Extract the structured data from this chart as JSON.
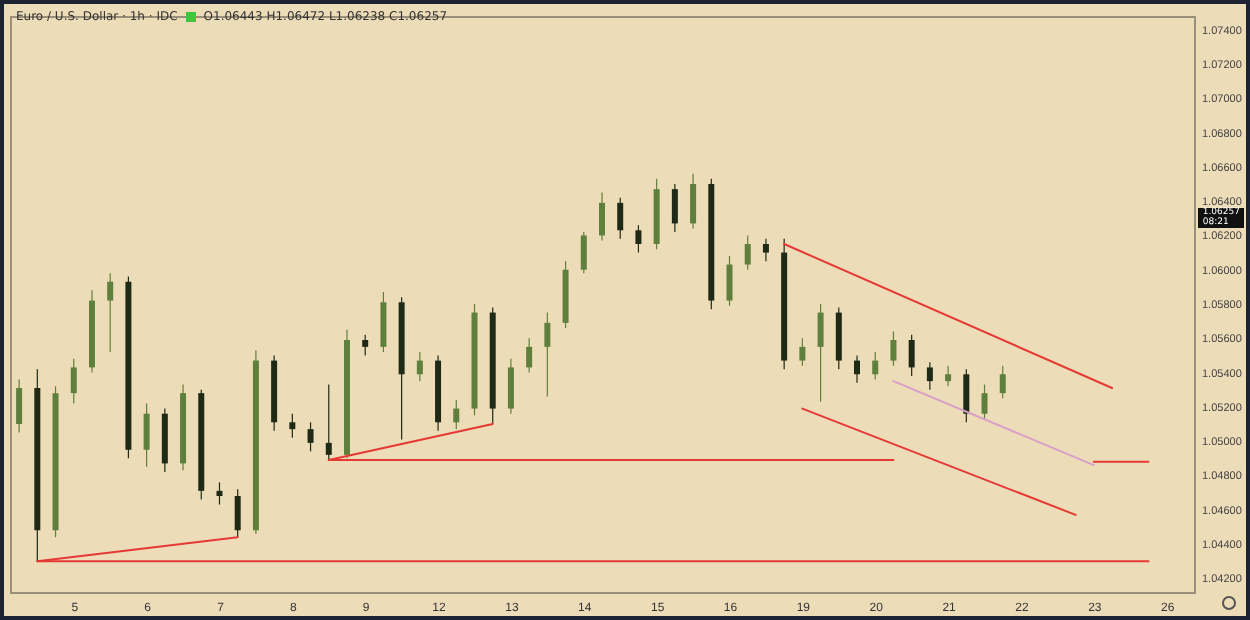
{
  "chart_data": {
    "type": "candlestick",
    "title": "Euro / U.S. Dollar · 1h · IDC",
    "annotations": [
      "O1.06443 H1.06472 L1.06238 C1.06257",
      "1.06257\n08:21"
    ],
    "categories": [
      null,
      null,
      null,
      "5",
      null,
      null,
      null,
      "6",
      null,
      null,
      null,
      "7",
      null,
      null,
      null,
      "8",
      null,
      null,
      null,
      "9",
      null,
      null,
      null,
      "12",
      null,
      null,
      null,
      "13",
      null,
      null,
      null,
      "14",
      null,
      null,
      null,
      "15",
      null,
      null,
      null,
      "16",
      null,
      null,
      null,
      "19",
      null,
      null,
      null,
      "20",
      null,
      null,
      null,
      "21",
      null,
      null,
      null,
      "22",
      null,
      null,
      null,
      "23",
      null,
      null,
      null,
      "26",
      null
    ],
    "ohlc": [
      [
        1.051,
        1.0536,
        1.0505,
        1.0531
      ],
      [
        1.0531,
        1.0542,
        1.043,
        1.0448
      ],
      [
        1.0448,
        1.0532,
        1.0444,
        1.0528
      ],
      [
        1.0528,
        1.0548,
        1.0522,
        1.0543
      ],
      [
        1.0543,
        1.0588,
        1.054,
        1.0582
      ],
      [
        1.0582,
        1.0598,
        1.0552,
        1.0593
      ],
      [
        1.0593,
        1.0596,
        1.049,
        1.0495
      ],
      [
        1.0495,
        1.0522,
        1.0485,
        1.0516
      ],
      [
        1.0516,
        1.0519,
        1.0482,
        1.0487
      ],
      [
        1.0487,
        1.0533,
        1.0483,
        1.0528
      ],
      [
        1.0528,
        1.053,
        1.0466,
        1.0471
      ],
      [
        1.0471,
        1.0476,
        1.0463,
        1.0468
      ],
      [
        1.0468,
        1.0472,
        1.0444,
        1.0448
      ],
      [
        1.0448,
        1.0553,
        1.0446,
        1.0547
      ],
      [
        1.0547,
        1.055,
        1.0506,
        1.0511
      ],
      [
        1.0511,
        1.0516,
        1.0502,
        1.0507
      ],
      [
        1.0507,
        1.0511,
        1.0494,
        1.0499
      ],
      [
        1.0499,
        1.0533,
        1.0489,
        1.0492
      ],
      [
        1.0492,
        1.0565,
        1.049,
        1.0559
      ],
      [
        1.0559,
        1.0562,
        1.055,
        1.0555
      ],
      [
        1.0555,
        1.0587,
        1.0552,
        1.0581
      ],
      [
        1.0581,
        1.0584,
        1.0501,
        1.0539
      ],
      [
        1.0539,
        1.0552,
        1.0535,
        1.0547
      ],
      [
        1.0547,
        1.055,
        1.0506,
        1.0511
      ],
      [
        1.0511,
        1.0524,
        1.0507,
        1.0519
      ],
      [
        1.0519,
        1.058,
        1.0515,
        1.0575
      ],
      [
        1.0575,
        1.0578,
        1.051,
        1.0519
      ],
      [
        1.0519,
        1.0548,
        1.0516,
        1.0543
      ],
      [
        1.0543,
        1.056,
        1.054,
        1.0555
      ],
      [
        1.0555,
        1.0575,
        1.0526,
        1.0569
      ],
      [
        1.0569,
        1.0605,
        1.0566,
        1.06
      ],
      [
        1.06,
        1.0622,
        1.0598,
        1.062
      ],
      [
        1.062,
        1.0645,
        1.0617,
        1.0639
      ],
      [
        1.0639,
        1.0642,
        1.0618,
        1.0623
      ],
      [
        1.0623,
        1.0626,
        1.061,
        1.0615
      ],
      [
        1.0615,
        1.0653,
        1.0612,
        1.0647
      ],
      [
        1.0647,
        1.065,
        1.0622,
        1.0627
      ],
      [
        1.0627,
        1.0656,
        1.0624,
        1.065
      ],
      [
        1.065,
        1.0653,
        1.0577,
        1.0582
      ],
      [
        1.0582,
        1.0608,
        1.0579,
        1.0603
      ],
      [
        1.0603,
        1.062,
        1.06,
        1.0615
      ],
      [
        1.0615,
        1.0618,
        1.0605,
        1.061
      ],
      [
        1.061,
        1.0618,
        1.0542,
        1.0547
      ],
      [
        1.0547,
        1.056,
        1.0544,
        1.0555
      ],
      [
        1.0555,
        1.058,
        1.0523,
        1.0575
      ],
      [
        1.0575,
        1.0578,
        1.0542,
        1.0547
      ],
      [
        1.0547,
        1.055,
        1.0534,
        1.0539
      ],
      [
        1.0539,
        1.0552,
        1.0536,
        1.0547
      ],
      [
        1.0547,
        1.0564,
        1.0544,
        1.0559
      ],
      [
        1.0559,
        1.0562,
        1.0538,
        1.0543
      ],
      [
        1.0543,
        1.0546,
        1.053,
        1.0535
      ],
      [
        1.0535,
        1.0544,
        1.0532,
        1.0539
      ],
      [
        1.0539,
        1.0542,
        1.0511,
        1.0516
      ],
      [
        1.0516,
        1.0533,
        1.0513,
        1.0528
      ],
      [
        1.0528,
        1.0544,
        1.0525,
        1.0539
      ],
      null,
      null,
      null,
      null,
      null,
      null,
      null,
      null,
      null,
      null
    ],
    "colors": [
      "#5f7f3c",
      "#1f2a16",
      "#5f7f3c",
      "#5f7f3c",
      "#5f7f3c",
      "#5f7f3c",
      "#1f2a16",
      "#5f7f3c",
      "#1f2a16",
      "#5f7f3c",
      "#1f2a16",
      "#1f2a16",
      "#1f2a16",
      "#5f7f3c",
      "#1f2a16",
      "#1f2a16",
      "#1f2a16",
      "#1f2a16",
      "#5f7f3c",
      "#1f2a16",
      "#5f7f3c",
      "#1f2a16",
      "#5f7f3c",
      "#1f2a16",
      "#5f7f3c",
      "#5f7f3c",
      "#1f2a16",
      "#5f7f3c",
      "#5f7f3c",
      "#5f7f3c",
      "#5f7f3c",
      "#5f7f3c",
      "#5f7f3c",
      "#1f2a16",
      "#1f2a16",
      "#5f7f3c",
      "#1f2a16",
      "#5f7f3c",
      "#1f2a16",
      "#5f7f3c",
      "#5f7f3c",
      "#1f2a16",
      "#1f2a16",
      "#5f7f3c",
      "#5f7f3c",
      "#1f2a16",
      "#1f2a16",
      "#5f7f3c",
      "#5f7f3c",
      "#1f2a16",
      "#1f2a16",
      "#5f7f3c",
      "#1f2a16",
      "#5f7f3c",
      "#5f7f3c",
      null,
      null,
      null,
      null,
      null,
      null,
      null,
      null,
      null,
      null
    ],
    "series": [
      {
        "type": "line",
        "color": "#e53935",
        "values": [
          null,
          1.043,
          null,
          null,
          null,
          null,
          null,
          null,
          null,
          null,
          null,
          null,
          1.0444,
          null,
          null,
          null,
          null,
          null,
          null,
          null,
          null,
          null,
          null,
          null,
          null,
          null,
          null,
          null,
          null,
          null,
          null,
          null,
          null,
          null,
          null,
          null,
          null,
          null,
          null,
          null,
          null,
          null,
          null,
          null,
          null,
          null,
          null,
          null,
          null,
          null,
          null,
          null,
          null,
          null,
          null,
          null,
          null,
          null,
          null,
          null,
          null,
          null,
          null,
          null,
          null
        ]
      },
      {
        "type": "line",
        "color": "#e53935",
        "values": [
          null,
          1.043,
          null,
          null,
          null,
          null,
          null,
          null,
          null,
          null,
          null,
          null,
          null,
          null,
          null,
          null,
          null,
          null,
          null,
          null,
          null,
          null,
          null,
          null,
          null,
          null,
          null,
          null,
          null,
          null,
          null,
          null,
          null,
          null,
          null,
          null,
          null,
          null,
          null,
          null,
          null,
          null,
          null,
          null,
          null,
          null,
          null,
          null,
          null,
          null,
          null,
          null,
          null,
          null,
          null,
          null,
          null,
          null,
          null,
          null,
          null,
          null,
          1.043,
          null,
          null
        ]
      },
      {
        "type": "line",
        "color": "#e53935",
        "values": [
          null,
          null,
          null,
          null,
          null,
          null,
          null,
          null,
          null,
          null,
          null,
          null,
          null,
          null,
          null,
          null,
          null,
          1.0489,
          null,
          null,
          null,
          null,
          null,
          null,
          null,
          null,
          1.051,
          null,
          null,
          null,
          null,
          null,
          null,
          null,
          null,
          null,
          null,
          null,
          null,
          null,
          null,
          null,
          null,
          null,
          null,
          null,
          null,
          null,
          null,
          null,
          null,
          null,
          null,
          null,
          null,
          null,
          null,
          null,
          null,
          null,
          null,
          null,
          null,
          null,
          null
        ]
      },
      {
        "type": "line",
        "color": "#e53935",
        "values": [
          null,
          null,
          null,
          null,
          null,
          null,
          null,
          null,
          null,
          null,
          null,
          null,
          null,
          null,
          null,
          null,
          null,
          1.0489,
          null,
          null,
          null,
          null,
          null,
          null,
          null,
          null,
          null,
          null,
          null,
          null,
          null,
          null,
          null,
          null,
          null,
          null,
          null,
          null,
          null,
          null,
          null,
          null,
          null,
          null,
          null,
          null,
          null,
          null,
          1.0489,
          null,
          null,
          null,
          null,
          null,
          null,
          null,
          null,
          null,
          null,
          null,
          null,
          null,
          null,
          null,
          null
        ]
      },
      {
        "type": "line",
        "color": "#e53935",
        "values": [
          null,
          null,
          null,
          null,
          null,
          null,
          null,
          null,
          null,
          null,
          null,
          null,
          null,
          null,
          null,
          null,
          null,
          null,
          null,
          null,
          null,
          null,
          null,
          null,
          null,
          null,
          null,
          null,
          null,
          null,
          null,
          null,
          null,
          null,
          null,
          null,
          null,
          null,
          null,
          null,
          null,
          null,
          null,
          null,
          null,
          null,
          null,
          null,
          null,
          null,
          null,
          null,
          null,
          null,
          null,
          null,
          null,
          null,
          null,
          1.0488,
          null,
          null,
          1.0488,
          null,
          null
        ]
      },
      {
        "type": "line",
        "color": "#e53935",
        "values": [
          null,
          null,
          null,
          null,
          null,
          null,
          null,
          null,
          null,
          null,
          null,
          null,
          null,
          null,
          null,
          null,
          null,
          null,
          null,
          null,
          null,
          null,
          null,
          null,
          null,
          null,
          null,
          null,
          null,
          null,
          null,
          null,
          null,
          null,
          null,
          null,
          null,
          null,
          null,
          null,
          null,
          null,
          1.0615,
          null,
          null,
          null,
          null,
          null,
          null,
          null,
          null,
          null,
          null,
          null,
          null,
          null,
          null,
          null,
          null,
          null,
          1.0531,
          null,
          null,
          null,
          null
        ]
      },
      {
        "type": "line",
        "color": "#e53935",
        "values": [
          null,
          null,
          null,
          null,
          null,
          null,
          null,
          null,
          null,
          null,
          null,
          null,
          null,
          null,
          null,
          null,
          null,
          null,
          null,
          null,
          null,
          null,
          null,
          null,
          null,
          null,
          null,
          null,
          null,
          null,
          null,
          null,
          null,
          null,
          null,
          null,
          null,
          null,
          null,
          null,
          null,
          null,
          null,
          1.0519,
          null,
          null,
          null,
          null,
          null,
          null,
          null,
          null,
          null,
          null,
          null,
          null,
          null,
          null,
          1.0457,
          null,
          null,
          null,
          null,
          null,
          null
        ]
      },
      {
        "type": "line",
        "color": "#d8a0c8",
        "values": [
          null,
          null,
          null,
          null,
          null,
          null,
          null,
          null,
          null,
          null,
          null,
          null,
          null,
          null,
          null,
          null,
          null,
          null,
          null,
          null,
          null,
          null,
          null,
          null,
          null,
          null,
          null,
          null,
          null,
          null,
          null,
          null,
          null,
          null,
          null,
          null,
          null,
          null,
          null,
          null,
          null,
          null,
          null,
          null,
          null,
          null,
          null,
          null,
          1.0535,
          null,
          null,
          null,
          null,
          null,
          null,
          null,
          null,
          null,
          null,
          1.0486,
          null,
          null,
          null,
          null,
          null
        ]
      }
    ],
    "ylim": [
      1.0412,
      1.0748
    ],
    "yticks": [
      {
        "value": 1.042,
        "label": "1.04200"
      },
      {
        "value": 1.044,
        "label": "1.04400"
      },
      {
        "value": 1.046,
        "label": "1.04600"
      },
      {
        "value": 1.048,
        "label": "1.04800"
      },
      {
        "value": 1.05,
        "label": "1.05000"
      },
      {
        "value": 1.052,
        "label": "1.05200"
      },
      {
        "value": 1.054,
        "label": "1.05400"
      },
      {
        "value": 1.056,
        "label": "1.05600"
      },
      {
        "value": 1.058,
        "label": "1.05800"
      },
      {
        "value": 1.06,
        "label": "1.06000"
      },
      {
        "value": 1.062,
        "label": "1.06200"
      },
      {
        "value": 1.064,
        "label": "1.06400"
      },
      {
        "value": 1.066,
        "label": "1.06600"
      },
      {
        "value": 1.068,
        "label": "1.06800"
      },
      {
        "value": 1.07,
        "label": "1.07000"
      },
      {
        "value": 1.072,
        "label": "1.07200"
      },
      {
        "value": 1.074,
        "label": "1.07400"
      }
    ],
    "grid": false
  }
}
